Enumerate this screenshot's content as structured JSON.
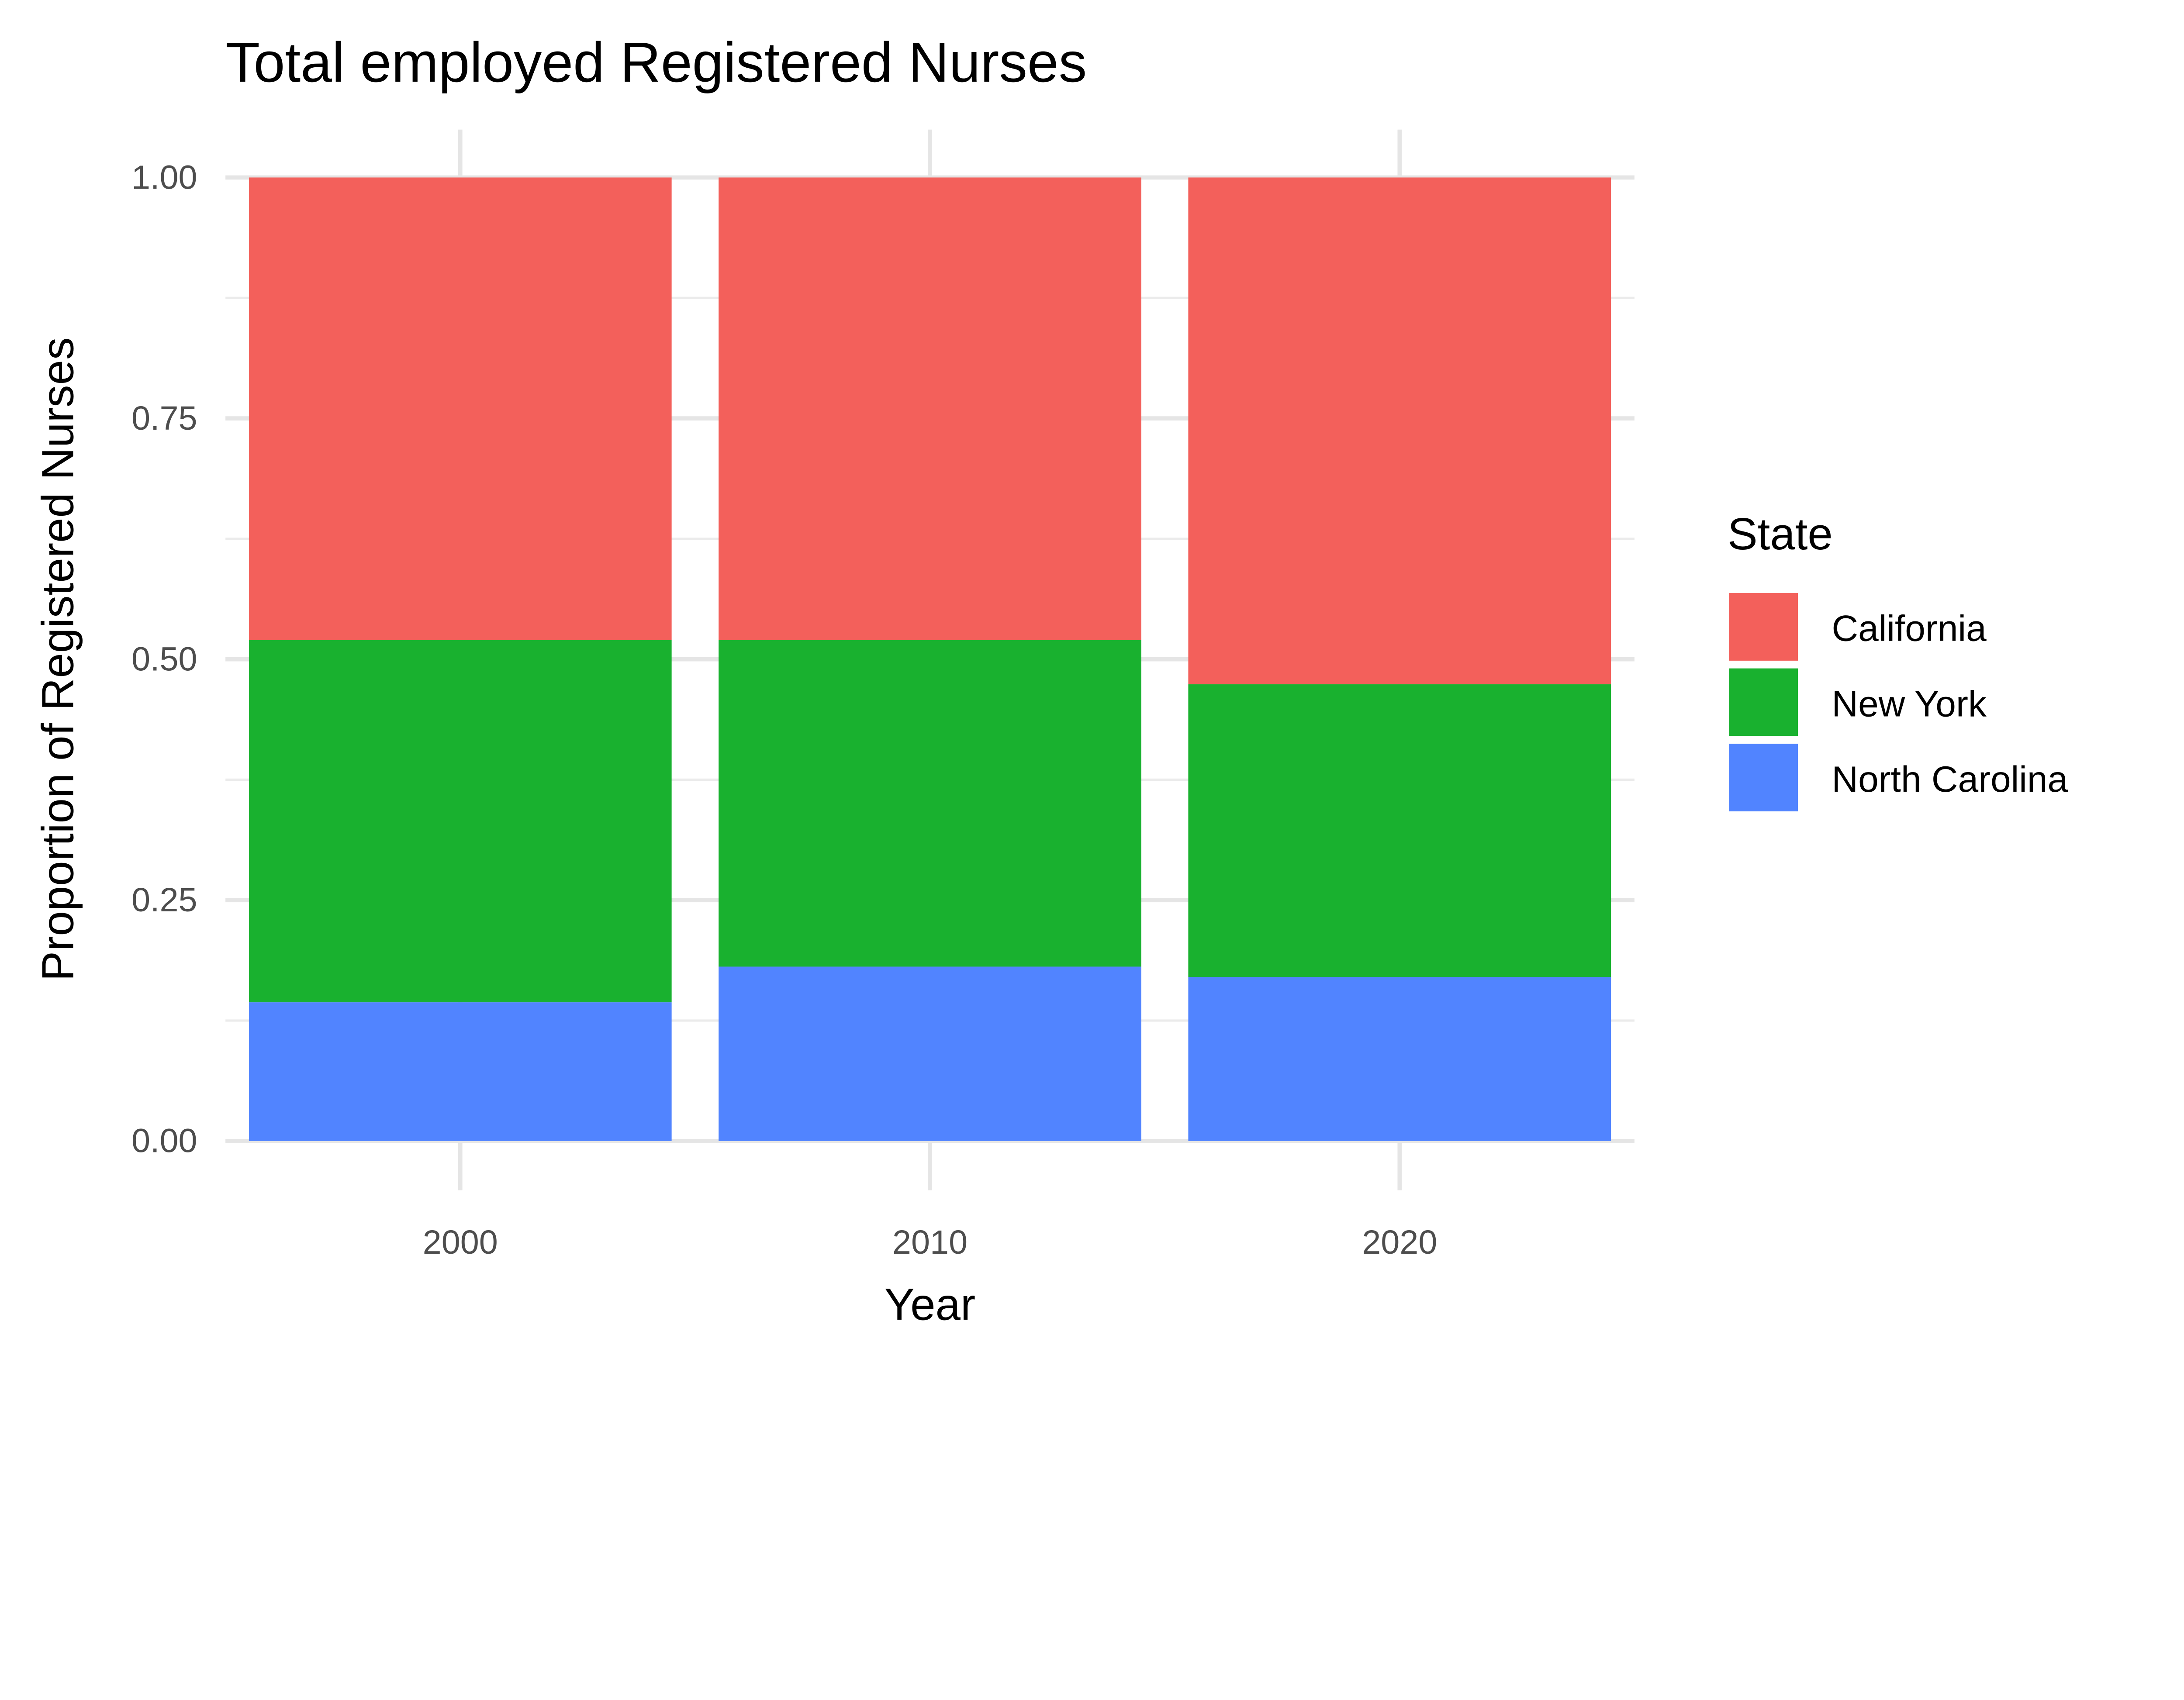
{
  "chart_data": {
    "type": "bar",
    "stacked": "proportion",
    "title": "Total employed Registered Nurses",
    "xlabel": "Year",
    "ylabel": "Proportion of Registered Nurses",
    "ylim": [
      0,
      1
    ],
    "yticks": [
      "0.00",
      "0.25",
      "0.50",
      "0.75",
      "1.00"
    ],
    "categories": [
      "2000",
      "2010",
      "2020"
    ],
    "grid": true,
    "legend": {
      "title": "State",
      "placement": "right"
    },
    "series": [
      {
        "name": "North Carolina",
        "color": "#5184FF",
        "values": [
          0.144,
          0.181,
          0.17
        ]
      },
      {
        "name": "New York",
        "color": "#19B12F",
        "values": [
          0.376,
          0.339,
          0.304
        ]
      },
      {
        "name": "California",
        "color": "#F3605B",
        "values": [
          0.48,
          0.48,
          0.526
        ]
      }
    ]
  }
}
